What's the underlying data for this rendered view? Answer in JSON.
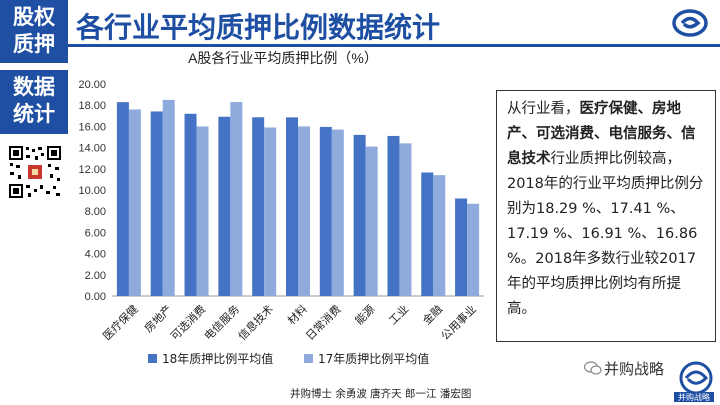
{
  "sidebar": {
    "block1": [
      "股权",
      "质押"
    ],
    "block2": [
      "数据",
      "统计"
    ]
  },
  "header": {
    "title": "各行业平均质押比例数据统计"
  },
  "chart_data": {
    "type": "bar",
    "title": "A股各行业平均质押比例（%）",
    "categories": [
      "医疗保健",
      "房地产",
      "可选消费",
      "电信服务",
      "信息技术",
      "材料",
      "日常消费",
      "能源",
      "工业",
      "金融",
      "公用事业"
    ],
    "series": [
      {
        "name": "18年质押比例平均值",
        "color": "#4472c4",
        "values": [
          18.29,
          17.41,
          17.19,
          16.91,
          16.86,
          16.85,
          15.95,
          15.2,
          15.1,
          11.65,
          9.2
        ]
      },
      {
        "name": "17年质押比例平均值",
        "color": "#8faadc",
        "values": [
          17.6,
          18.5,
          16.0,
          18.3,
          15.9,
          16.0,
          15.7,
          14.1,
          14.4,
          11.4,
          8.7
        ]
      }
    ],
    "ylim": [
      0,
      20
    ],
    "yticks": [
      "0.00",
      "2.00",
      "4.00",
      "6.00",
      "8.00",
      "10.00",
      "12.00",
      "14.00",
      "16.00",
      "18.00",
      "20.00"
    ],
    "grid": false,
    "legend": "bottom"
  },
  "textbox": {
    "p1": "从行业看，",
    "p1b": "医疗保健、房地产、可选消费、电信服务、信息技术",
    "p2": "行业质押比例较高，2018年的行业平均质押比例分别为18.29 %、17.41 %、17.19 %、16.91 %、16.86 %。2018年多数行业较2017年的平均质押比例均有所提高。"
  },
  "footer": {
    "wechat": "并购战略",
    "brand": "并购战略",
    "author": "并购博士 余勇波 唐齐天 郎一江 潘宏图"
  },
  "colors": {
    "brand": "#1e4fa3"
  },
  "icons": {
    "qr": "qr-code-icon",
    "logo": "brand-swirl-logo-icon",
    "wechat": "wechat-icon"
  }
}
